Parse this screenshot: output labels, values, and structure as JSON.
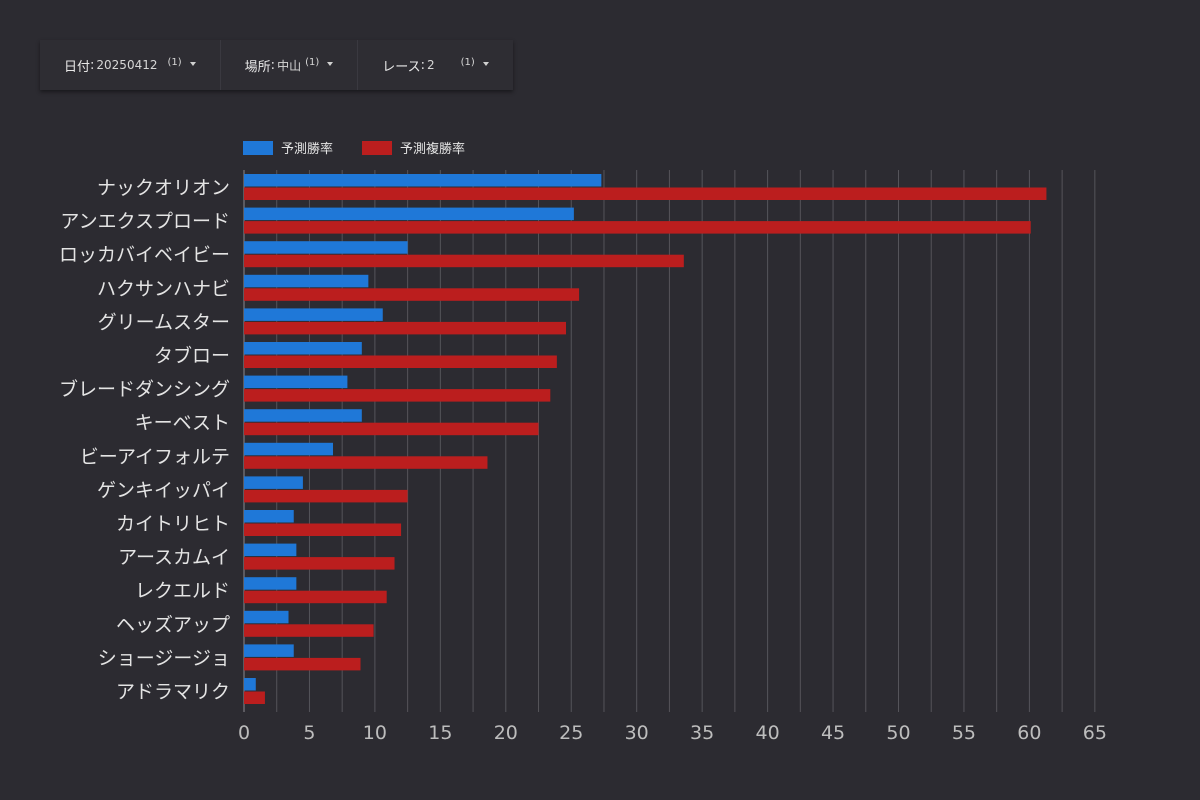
{
  "filters": [
    {
      "label": "日付",
      "value": "20250412",
      "count": "(1)"
    },
    {
      "label": "場所",
      "value": "中山",
      "count": "(1)"
    },
    {
      "label": "レース",
      "value": "2",
      "count": "(1)"
    }
  ],
  "colors": {
    "win": "#1f78d8",
    "place": "#bb1e1e",
    "grid": "#55545a",
    "axis": "#8a8a8e",
    "label": "#e4e4e4",
    "tick": "#bdbdbd"
  },
  "chart_data": {
    "type": "bar",
    "orientation": "horizontal",
    "categories": [
      "ナックオリオン",
      "アンエクスプロード",
      "ロッカバイベイビー",
      "ハクサンハナビ",
      "グリームスター",
      "タブロー",
      "ブレードダンシング",
      "キーベスト",
      "ビーアイフォルテ",
      "ゲンキイッパイ",
      "カイトリヒト",
      "アースカムイ",
      "レクエルド",
      "ヘッズアップ",
      "ショージージョ",
      "アドラマリク"
    ],
    "series": [
      {
        "name": "予測勝率",
        "values": [
          27.3,
          25.2,
          12.5,
          9.5,
          10.6,
          9.0,
          7.9,
          9.0,
          6.8,
          4.5,
          3.8,
          4.0,
          4.0,
          3.4,
          3.8,
          0.9
        ]
      },
      {
        "name": "予測複勝率",
        "values": [
          61.3,
          60.1,
          33.6,
          25.6,
          24.6,
          23.9,
          23.4,
          22.5,
          18.6,
          12.5,
          12.0,
          11.5,
          10.9,
          9.9,
          8.9,
          1.6
        ]
      }
    ],
    "xlim": [
      0,
      65
    ],
    "xticks": [
      "0",
      "5",
      "10",
      "15",
      "20",
      "25",
      "30",
      "35",
      "40",
      "45",
      "50",
      "55",
      "60",
      "65"
    ],
    "grid": true,
    "legend_position": "top-left"
  }
}
